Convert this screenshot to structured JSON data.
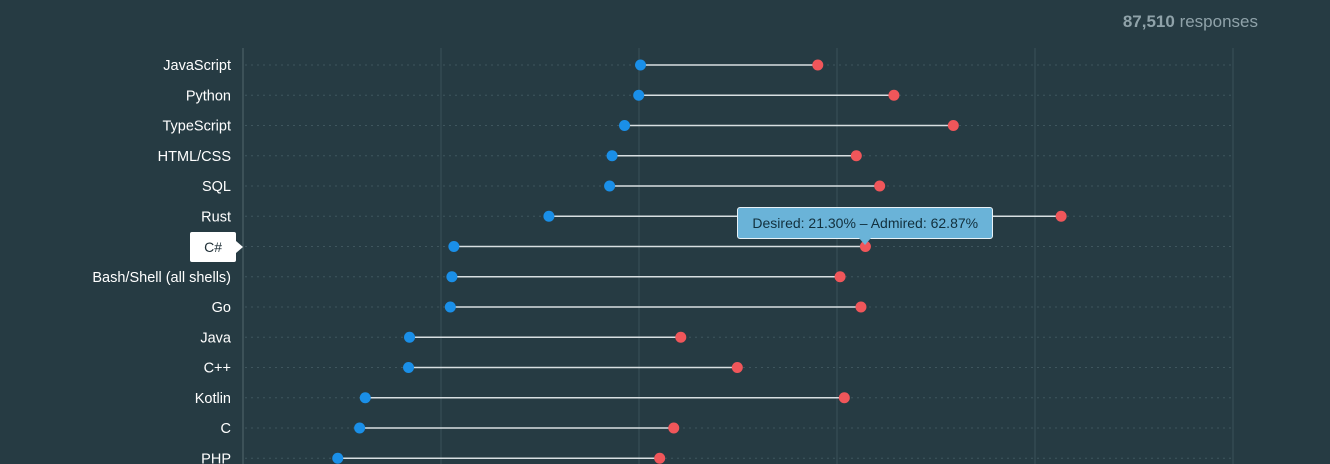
{
  "header": {
    "responses_count": "87,510",
    "responses_label": "responses"
  },
  "colors": {
    "desired": "#1a8fe8",
    "admired": "#f0565a",
    "line": "#d8dfe2",
    "label": "#ffffff",
    "grid": "#3b525a"
  },
  "tooltip": {
    "text": "Desired: 21.30% – Admired: 62.87%",
    "category_index": 6
  },
  "chart_data": {
    "type": "dumbbell",
    "categories": [
      "JavaScript",
      "Python",
      "TypeScript",
      "HTML/CSS",
      "SQL",
      "Rust",
      "C#",
      "Bash/Shell (all shells)",
      "Go",
      "Java",
      "C++",
      "Kotlin",
      "C",
      "PHP"
    ],
    "series": [
      {
        "name": "Desired",
        "values": [
          40.15,
          39.97,
          38.54,
          37.28,
          37.03,
          30.9,
          21.3,
          21.1,
          20.94,
          16.82,
          16.72,
          12.35,
          11.78,
          9.57
        ]
      },
      {
        "name": "Admired",
        "values": [
          58.06,
          65.75,
          71.75,
          61.95,
          64.31,
          82.64,
          62.87,
          60.31,
          62.42,
          44.22,
          49.93,
          60.74,
          43.51,
          42.09
        ]
      }
    ],
    "xlim": [
      0,
      100
    ],
    "grid": true
  }
}
